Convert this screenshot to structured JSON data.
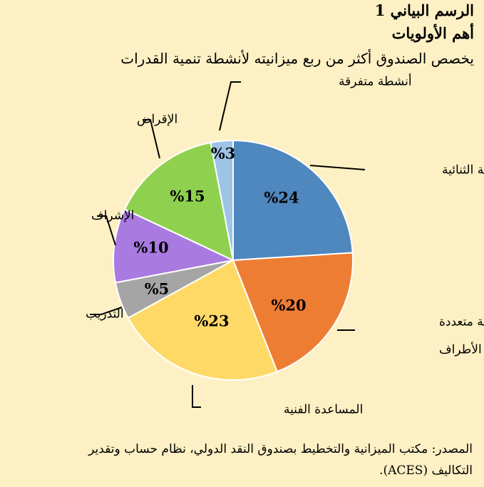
{
  "figure": {
    "title": "الرسم البياني 1",
    "heading": "أهم الأولويات",
    "subtitle": "يخصص الصندوق أكثر من ربع ميزانيته لأنشطة تنمية القدرات",
    "source_line1": "المصدر: مكتب الميزانية والتخطيط بصندوق النقد الدولي، نظام حساب وتقدير",
    "source_line2": "التكاليف (ACES)."
  },
  "chart_data": {
    "type": "pie",
    "title": "أهم الأولويات",
    "subtitle": "يخصص الصندوق أكثر من ربع ميزانيته لأنشطة تنمية القدرات",
    "slices": [
      {
        "category": "الرقابة الثنائية",
        "value": 24,
        "label": "%24",
        "color": "#4F87BF"
      },
      {
        "category": "الرقابة متعددة الأطراف",
        "value": 20,
        "label": "%20",
        "color": "#EE7D34"
      },
      {
        "category": "المساعدة الفنية",
        "value": 23,
        "label": "%23",
        "color": "#FFD966"
      },
      {
        "category": "التدريب",
        "value": 5,
        "label": "%5",
        "color": "#A5A5A5"
      },
      {
        "category": "الإشراف",
        "value": 10,
        "label": "%10",
        "color": "#A97AE0"
      },
      {
        "category": "الإقراض",
        "value": 15,
        "label": "%15",
        "color": "#8FD14F"
      },
      {
        "category": "أنشطة متفرقة",
        "value": 3,
        "label": "%3",
        "color": "#9DC3E6"
      }
    ]
  }
}
